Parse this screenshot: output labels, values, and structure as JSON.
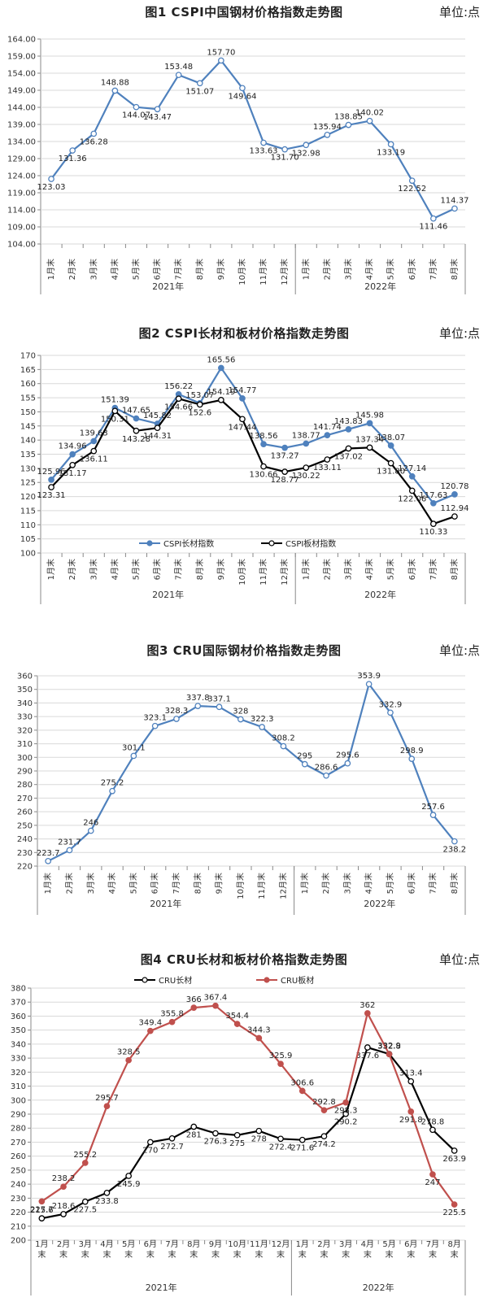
{
  "unit_label": "单位:点",
  "chart_data": [
    {
      "type": "line",
      "title": "图1 CSPI中国钢材价格指数走势图",
      "categories": [
        "1月末",
        "2月末",
        "3月末",
        "4月末",
        "5月末",
        "6月末",
        "7月末",
        "8月末",
        "9月末",
        "10月末",
        "11月末",
        "12月末",
        "1月末",
        "2月末",
        "3月末",
        "4月末",
        "5月末",
        "6月末",
        "7月末",
        "8月末"
      ],
      "groups": [
        {
          "label": "2021年",
          "count": 12
        },
        {
          "label": "2022年",
          "count": 8
        }
      ],
      "yticks": [
        "104.00",
        "109.00",
        "114.00",
        "119.00",
        "124.00",
        "129.00",
        "134.00",
        "139.00",
        "144.00",
        "149.00",
        "154.00",
        "159.00",
        "164.00"
      ],
      "ylim": [
        104,
        164
      ],
      "series": [
        {
          "name": "CSPI",
          "color": "#4f81bd",
          "marker_fill": "#ffffff",
          "values": [
            123.03,
            131.36,
            136.28,
            148.88,
            144.07,
            143.47,
            153.48,
            151.07,
            157.7,
            149.64,
            133.63,
            131.7,
            132.98,
            135.94,
            138.85,
            140.02,
            133.19,
            122.52,
            111.46,
            114.37
          ],
          "labels": [
            "123.03",
            "131.36",
            "136.28",
            "148.88",
            "144.07",
            "143.47",
            "153.48",
            "151.07",
            "157.70",
            "149.64",
            "133.63",
            "131.70",
            "132.98",
            "135.94",
            "138.85",
            "140.02",
            "133.19",
            "122.52",
            "111.46",
            "114.37"
          ]
        }
      ]
    },
    {
      "type": "line",
      "title": "图2 CSPI长材和板材价格指数走势图",
      "categories": [
        "1月末",
        "2月末",
        "3月末",
        "4月末",
        "5月末",
        "6月末",
        "7月末",
        "8月末",
        "9月末",
        "10月末",
        "11月末",
        "12月末",
        "1月末",
        "2月末",
        "3月末",
        "4月末",
        "5月末",
        "6月末",
        "7月末",
        "8月末"
      ],
      "groups": [
        {
          "label": "2021年",
          "count": 12
        },
        {
          "label": "2022年",
          "count": 8
        }
      ],
      "yticks": [
        "100",
        "105",
        "110",
        "115",
        "120",
        "125",
        "130",
        "135",
        "140",
        "145",
        "150",
        "155",
        "160",
        "165",
        "170"
      ],
      "ylim": [
        100,
        170
      ],
      "legend": [
        "CSPI长材指数",
        "CSPI板材指数"
      ],
      "series": [
        {
          "name": "CSPI长材指数",
          "color": "#4f81bd",
          "marker_fill": "#4f81bd",
          "values": [
            125.96,
            134.96,
            139.63,
            151.39,
            147.65,
            145.82,
            156.22,
            153.07,
            165.56,
            154.77,
            138.56,
            137.27,
            138.77,
            141.74,
            143.83,
            145.98,
            138.07,
            127.14,
            117.63,
            120.78
          ],
          "labels": [
            "125.96",
            "134.96",
            "139.63",
            "151.39",
            "147.65",
            "145.82",
            "156.22",
            "153.07",
            "165.56",
            "154.77",
            "138.56",
            "137.27",
            "138.77",
            "141.74",
            "143.83",
            "145.98",
            "138.07",
            "127.14",
            "117.63",
            "120.78"
          ]
        },
        {
          "name": "CSPI板材指数",
          "color": "#000000",
          "marker_fill": "#ffffff",
          "values": [
            123.31,
            131.17,
            136.11,
            150.31,
            143.28,
            144.31,
            154.66,
            152.6,
            154.19,
            147.44,
            130.66,
            128.77,
            130.22,
            133.11,
            137.02,
            137.34,
            131.8,
            122.06,
            110.33,
            112.94
          ],
          "labels": [
            "123.31",
            "131.17",
            "136.11",
            "150.31",
            "143.28",
            "144.31",
            "154.66",
            "152.6",
            "154.19",
            "147.44",
            "130.66",
            "128.77",
            "130.22",
            "133.11",
            "137.02",
            "137.34",
            "131.80",
            "122.06",
            "110.33",
            "112.94"
          ]
        }
      ]
    },
    {
      "type": "line",
      "title": "图3 CRU国际钢材价格指数走势图",
      "categories": [
        "1月末",
        "2月末",
        "3月末",
        "4月末",
        "5月末",
        "6月末",
        "7月末",
        "8月末",
        "9月末",
        "10月末",
        "11月末",
        "12月末",
        "1月末",
        "2月末",
        "3月末",
        "4月末",
        "5月末",
        "6月末",
        "7月末",
        "8月末"
      ],
      "groups": [
        {
          "label": "2021年",
          "count": 12
        },
        {
          "label": "2022年",
          "count": 8
        }
      ],
      "yticks": [
        "220",
        "230",
        "240",
        "250",
        "260",
        "270",
        "280",
        "290",
        "300",
        "310",
        "320",
        "330",
        "340",
        "350",
        "360"
      ],
      "ylim": [
        220,
        360
      ],
      "series": [
        {
          "name": "CRU",
          "color": "#4f81bd",
          "marker_fill": "#ffffff",
          "values": [
            223.7,
            231.7,
            246,
            275.2,
            301.1,
            323.1,
            328.3,
            337.8,
            337.1,
            328,
            322.3,
            308.2,
            295,
            286.6,
            295.6,
            353.9,
            332.9,
            298.9,
            257.6,
            238.2
          ],
          "labels": [
            "223.7",
            "231.7",
            "246",
            "275.2",
            "301.1",
            "323.1",
            "328.3",
            "337.8",
            "337.1",
            "328",
            "322.3",
            "308.2",
            "295",
            "286.6",
            "295.6",
            "353.9",
            "332.9",
            "298.9",
            "257.6",
            "238.2"
          ]
        }
      ]
    },
    {
      "type": "line",
      "title": "图4 CRU长材和板材价格指数走势图",
      "categories": [
        "1月末",
        "2月末",
        "3月末",
        "4月末",
        "5月末",
        "6月末",
        "7月末",
        "8月末",
        "9月末",
        "10月末",
        "11月末",
        "12月末",
        "1月末",
        "2月末",
        "3月末",
        "4月末",
        "5月末",
        "6月末",
        "7月末",
        "8月末"
      ],
      "groups": [
        {
          "label": "2021年",
          "count": 12
        },
        {
          "label": "2022年",
          "count": 8
        }
      ],
      "yticks": [
        "200",
        "210",
        "220",
        "230",
        "240",
        "250",
        "260",
        "270",
        "280",
        "290",
        "300",
        "310",
        "320",
        "330",
        "340",
        "350",
        "360",
        "370",
        "380"
      ],
      "ylim": [
        200,
        380
      ],
      "legend": [
        "CRU长材",
        "CRU板材"
      ],
      "series": [
        {
          "name": "CRU长材",
          "color": "#000000",
          "marker_fill": "#ffffff",
          "values": [
            215.6,
            218.6,
            227.5,
            233.8,
            245.9,
            270,
            272.7,
            281,
            276.3,
            275,
            278,
            272.4,
            271.6,
            274.2,
            290.2,
            337.6,
            332.9,
            313.4,
            278.8,
            263.9
          ],
          "labels": [
            "215.6",
            "218.6",
            "227.5",
            "233.8",
            "245.9",
            "270",
            "272.7",
            "281",
            "276.3",
            "275",
            "278",
            "272.4",
            "271.6",
            "274.2",
            "290.2",
            "337.6",
            "332.9",
            "313.4",
            "278.8",
            "263.9"
          ]
        },
        {
          "name": "CRU板材",
          "color": "#c0504d",
          "marker_fill": "#c0504d",
          "values": [
            227.7,
            238.2,
            255.2,
            295.7,
            328.5,
            349.4,
            355.8,
            366,
            367.4,
            354.4,
            344.3,
            325.9,
            306.6,
            292.8,
            298.3,
            362,
            332.8,
            291.8,
            247,
            225.5
          ],
          "labels": [
            "227.7",
            "238.2",
            "255.2",
            "295.7",
            "328.5",
            "349.4",
            "355.8",
            "366",
            "367.4",
            "354.4",
            "344.3",
            "325.9",
            "306.6",
            "292.8",
            "298.3",
            "362",
            "332.8",
            "291.8",
            "247",
            "225.5"
          ]
        }
      ]
    }
  ]
}
